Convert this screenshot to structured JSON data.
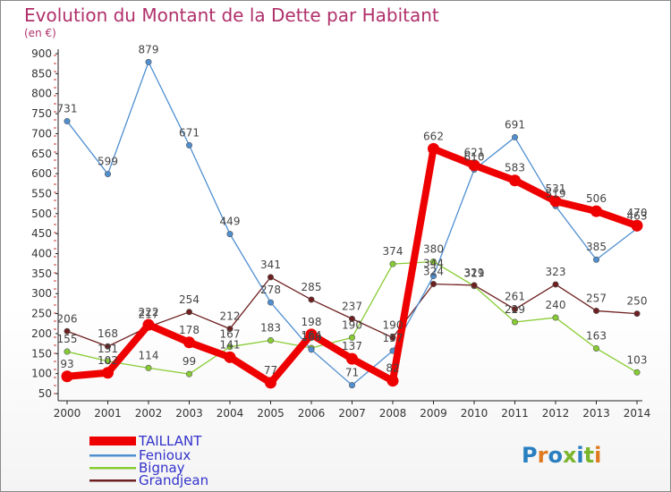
{
  "title": "Evolution du Montant de la Dette par Habitant",
  "subtitle": "(en €)",
  "watermark": "Proxiti",
  "chart_data": {
    "type": "line",
    "title": "Evolution du Montant de la Dette par Habitant",
    "ylabel": "(en €)",
    "categories": [
      "2000",
      "2001",
      "2002",
      "2003",
      "2004",
      "2005",
      "2006",
      "2007",
      "2008",
      "2009",
      "2010",
      "2011",
      "2012",
      "2013",
      "2014"
    ],
    "ylim": [
      50,
      900
    ],
    "yticks": [
      50,
      100,
      150,
      200,
      250,
      300,
      350,
      400,
      450,
      500,
      550,
      600,
      650,
      700,
      750,
      800,
      850,
      900
    ],
    "grid": false,
    "legend_position": "bottom-left",
    "series": [
      {
        "name": "TAILLANT",
        "color": "#ee0000",
        "values": [
          93,
          102,
          222,
          178,
          141,
          77,
          198,
          137,
          82,
          662,
          621,
          583,
          531,
          506,
          470
        ]
      },
      {
        "name": "Fenioux",
        "color": "#4f8fd0",
        "values": [
          731,
          599,
          879,
          671,
          449,
          278,
          160,
          71,
          157,
          344,
          610,
          691,
          519,
          385,
          463
        ]
      },
      {
        "name": "Bignay",
        "color": "#88cc33",
        "values": [
          155,
          131,
          114,
          99,
          167,
          183,
          164,
          190,
          374,
          380,
          319,
          229,
          240,
          163,
          103
        ]
      },
      {
        "name": "Grandjean",
        "color": "#6e1f1f",
        "values": [
          206,
          168,
          217,
          254,
          212,
          341,
          285,
          237,
          190,
          324,
          321,
          261,
          323,
          257,
          250
        ]
      }
    ]
  }
}
